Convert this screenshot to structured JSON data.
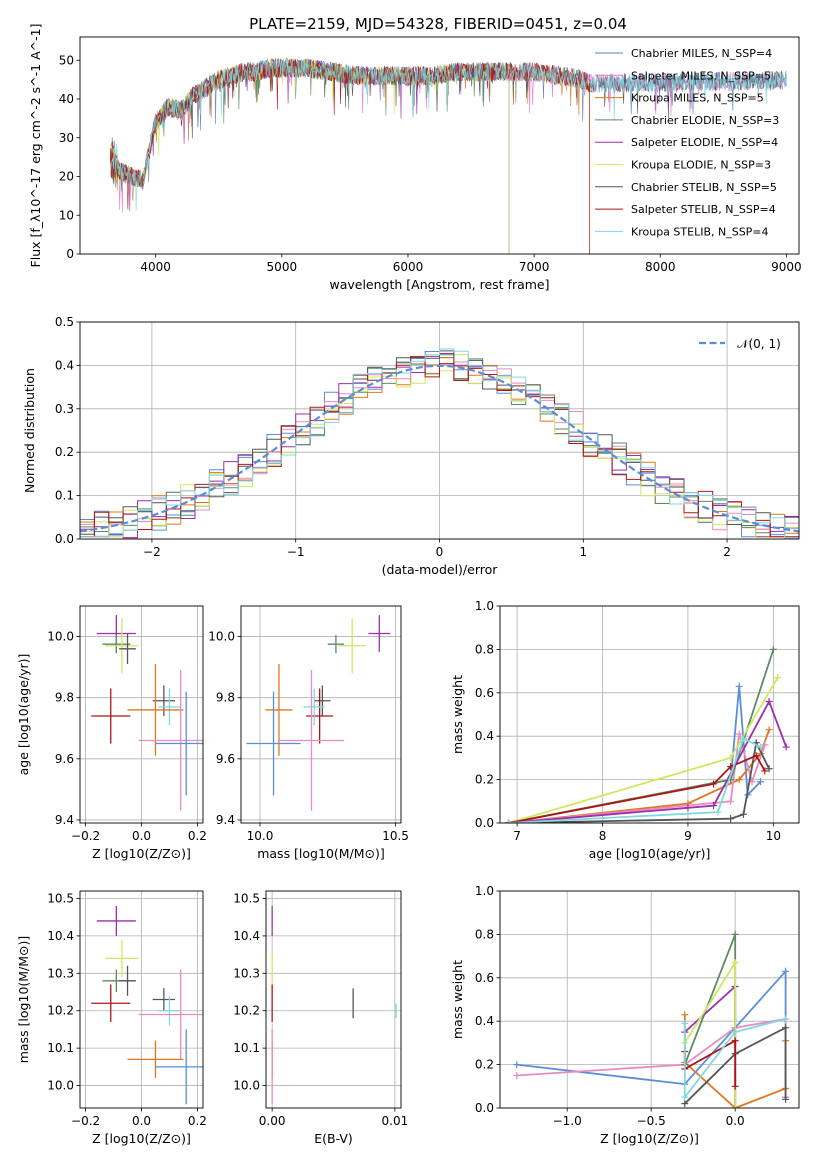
{
  "figure_title": "PLATE=2159, MJD=54328, FIBERID=0451, z=0.04",
  "colors": {
    "chabrier_miles": "#5b7fb8",
    "salpeter_miles": "#e377c2",
    "kroupa_miles": "#d97b1f",
    "chabrier_elodie": "#5a8a5a",
    "salpeter_elodie": "#9b2fae",
    "kroupa_elodie": "#d4e85a",
    "chabrier_stelib": "#555555",
    "salpeter_stelib": "#b01515",
    "kroupa_stelib": "#80d8e0",
    "plot_blue": "#5b8dd9",
    "plot_orange": "#e0781f",
    "plot_pink": "#e88bc0",
    "plot_green": "#5e8a62",
    "plot_purple": "#9b2fae",
    "plot_yellow": "#cfe860",
    "plot_grey": "#555555",
    "plot_red": "#b01515",
    "plot_cyan": "#80d8e0",
    "gauss": "#5b8dd9"
  },
  "chart_data": [
    {
      "id": "spectrum",
      "type": "line",
      "xlabel": "wavelength [Angstrom, rest frame]",
      "ylabel": "Flux [f_λ10^-17 erg cm^-2 s^-1 A^-1]",
      "xlim": [
        3400,
        9100
      ],
      "ylim": [
        0,
        56
      ],
      "xticks": [
        4000,
        5000,
        6000,
        7000,
        8000,
        9000
      ],
      "yticks": [
        0,
        10,
        20,
        30,
        40,
        50
      ],
      "grid": false,
      "legend_position": "upper-right",
      "continuum": {
        "x": [
          3640,
          3700,
          3800,
          3900,
          3950,
          4000,
          4100,
          4200,
          4300,
          4400,
          4500,
          4600,
          4700,
          4800,
          4900,
          5000,
          5200,
          5400,
          5600,
          5800,
          6000,
          6200,
          6400,
          6600,
          6800,
          7000,
          7200,
          7400,
          7440
        ],
        "y": [
          25,
          22,
          20,
          19,
          27,
          34,
          38,
          37,
          41,
          43,
          45,
          46,
          47,
          47,
          48,
          48,
          48,
          47,
          46,
          46,
          46,
          46,
          47,
          47,
          47,
          47,
          46,
          45,
          44
        ]
      },
      "series": [
        {
          "name": "Chabrier MILES, N_SSP=4",
          "color_key": "chabrier_miles",
          "x_end": 9000
        },
        {
          "name": "Salpeter MILES, N_SSP=5",
          "color_key": "salpeter_miles",
          "x_end": 9000
        },
        {
          "name": "Kroupa MILES, N_SSP=5",
          "color_key": "kroupa_miles",
          "x_end": 7440
        },
        {
          "name": "Chabrier ELODIE, N_SSP=3",
          "color_key": "chabrier_elodie",
          "x_end": 6800
        },
        {
          "name": "Salpeter ELODIE, N_SSP=4",
          "color_key": "salpeter_elodie",
          "x_end": 6800
        },
        {
          "name": "Kroupa ELODIE, N_SSP=3",
          "color_key": "kroupa_elodie",
          "x_end": 6800
        },
        {
          "name": "Chabrier STELIB, N_SSP=5",
          "color_key": "chabrier_stelib",
          "x_end": 9000
        },
        {
          "name": "Salpeter STELIB, N_SSP=4",
          "color_key": "salpeter_stelib",
          "x_end": 7440
        },
        {
          "name": "Kroupa STELIB, N_SSP=4",
          "color_key": "kroupa_stelib",
          "x_end": 9000
        }
      ]
    },
    {
      "id": "residuals",
      "type": "line",
      "xlabel": "(data-model)/error",
      "ylabel": "Normed distribution",
      "xlim": [
        -2.5,
        2.5
      ],
      "ylim": [
        0,
        0.5
      ],
      "xticks": [
        -2,
        -1,
        0,
        1,
        2
      ],
      "yticks": [
        0.0,
        0.1,
        0.2,
        0.3,
        0.4,
        0.5
      ],
      "grid": true,
      "legend_position": "upper-right",
      "legend": "𝒩(0, 1)",
      "bin_width": 0.1
    },
    {
      "id": "age_vs_z",
      "type": "scatter",
      "xlabel": "Z [log10(Z/Z⊙)]",
      "ylabel": "age [log10(age/yr)]",
      "xlim": [
        -0.22,
        0.22
      ],
      "ylim": [
        9.39,
        10.1
      ],
      "xticks": [
        -0.2,
        0.0,
        0.2
      ],
      "yticks": [
        9.4,
        9.6,
        9.8,
        10.0
      ],
      "grid": true,
      "points": [
        {
          "color_key": "plot_purple",
          "x": -0.09,
          "y": 10.01,
          "xerr": 0.07,
          "yerr": 0.06
        },
        {
          "color_key": "plot_green",
          "x": -0.09,
          "y": 9.975,
          "xerr": 0.05,
          "yerr": 0.03
        },
        {
          "color_key": "plot_yellow",
          "x": -0.07,
          "y": 9.97,
          "xerr": 0.06,
          "yerr": 0.09
        },
        {
          "color_key": "plot_grey",
          "x": -0.05,
          "y": 9.96,
          "xerr": 0.03,
          "yerr": 0.05
        },
        {
          "color_key": "plot_red",
          "x": -0.11,
          "y": 9.74,
          "xerr": 0.07,
          "yerr": 0.09
        },
        {
          "color_key": "plot_grey",
          "x": 0.08,
          "y": 9.79,
          "xerr": 0.04,
          "yerr": 0.05
        },
        {
          "color_key": "plot_cyan",
          "x": 0.1,
          "y": 9.77,
          "xerr": 0.04,
          "yerr": 0.06
        },
        {
          "color_key": "plot_orange",
          "x": 0.05,
          "y": 9.76,
          "xerr": 0.1,
          "yerr": 0.15
        },
        {
          "color_key": "plot_pink",
          "x": 0.14,
          "y": 9.66,
          "xerr": 0.15,
          "yerr": 0.23
        },
        {
          "color_key": "plot_blue",
          "x": 0.16,
          "y": 9.65,
          "xerr": 0.11,
          "yerr": 0.17
        }
      ]
    },
    {
      "id": "age_vs_mass",
      "type": "scatter",
      "xlabel": "mass [log10(M/M⊙)]",
      "ylabel": "",
      "xlim": [
        9.93,
        10.52
      ],
      "ylim": [
        9.39,
        10.1
      ],
      "xticks": [
        10.0,
        10.5
      ],
      "yticks": [
        9.4,
        9.6,
        9.8,
        10.0
      ],
      "grid": true,
      "points": [
        {
          "color_key": "plot_purple",
          "x": 10.44,
          "y": 10.01,
          "xerr": 0.04,
          "yerr": 0.06
        },
        {
          "color_key": "plot_green",
          "x": 10.28,
          "y": 9.975,
          "xerr": 0.03,
          "yerr": 0.03
        },
        {
          "color_key": "plot_yellow",
          "x": 10.34,
          "y": 9.97,
          "xerr": 0.05,
          "yerr": 0.09
        },
        {
          "color_key": "plot_grey",
          "x": 10.23,
          "y": 9.79,
          "xerr": 0.03,
          "yerr": 0.05
        },
        {
          "color_key": "plot_red",
          "x": 10.22,
          "y": 9.74,
          "xerr": 0.05,
          "yerr": 0.09
        },
        {
          "color_key": "plot_cyan",
          "x": 10.2,
          "y": 9.77,
          "xerr": 0.04,
          "yerr": 0.06
        },
        {
          "color_key": "plot_orange",
          "x": 10.07,
          "y": 9.76,
          "xerr": 0.05,
          "yerr": 0.15
        },
        {
          "color_key": "plot_pink",
          "x": 10.19,
          "y": 9.66,
          "xerr": 0.12,
          "yerr": 0.23
        },
        {
          "color_key": "plot_blue",
          "x": 10.05,
          "y": 9.65,
          "xerr": 0.1,
          "yerr": 0.17
        }
      ]
    },
    {
      "id": "weight_vs_age",
      "type": "line",
      "xlabel": "age [log10(age/yr)]",
      "ylabel": "mass weight",
      "xlim": [
        6.8,
        10.3
      ],
      "ylim": [
        0,
        1.0
      ],
      "xticks": [
        7,
        8,
        9,
        10
      ],
      "yticks": [
        0.0,
        0.2,
        0.4,
        0.6,
        0.8,
        1.0
      ],
      "grid": true,
      "series": [
        {
          "color_key": "plot_blue",
          "x": [
            6.9,
            9.5,
            9.6,
            9.7,
            9.85
          ],
          "y": [
            0.0,
            0.2,
            0.63,
            0.13,
            0.19
          ]
        },
        {
          "color_key": "plot_orange",
          "x": [
            6.9,
            9.0,
            9.6,
            9.85,
            9.95
          ],
          "y": [
            0.0,
            0.09,
            0.2,
            0.32,
            0.43
          ]
        },
        {
          "color_key": "plot_pink",
          "x": [
            6.9,
            9.5,
            9.6,
            9.75,
            9.9
          ],
          "y": [
            0.0,
            0.1,
            0.41,
            0.19,
            0.36
          ]
        },
        {
          "color_key": "plot_green",
          "x": [
            6.9,
            9.5,
            10.0
          ],
          "y": [
            0.0,
            0.2,
            0.8
          ]
        },
        {
          "color_key": "plot_purple",
          "x": [
            6.9,
            9.0,
            9.3,
            9.95,
            10.15
          ],
          "y": [
            0.0,
            0.07,
            0.08,
            0.56,
            0.35
          ]
        },
        {
          "color_key": "plot_yellow",
          "x": [
            6.9,
            9.5,
            10.05
          ],
          "y": [
            0.0,
            0.3,
            0.67
          ]
        },
        {
          "color_key": "plot_grey",
          "x": [
            6.9,
            9.5,
            9.65,
            9.8,
            9.95
          ],
          "y": [
            0.0,
            0.02,
            0.04,
            0.37,
            0.25
          ]
        },
        {
          "color_key": "plot_red",
          "x": [
            6.9,
            9.3,
            9.5,
            9.8,
            9.9
          ],
          "y": [
            0.0,
            0.18,
            0.26,
            0.31,
            0.24
          ]
        },
        {
          "color_key": "plot_cyan",
          "x": [
            6.9,
            9.35,
            9.65,
            9.85
          ],
          "y": [
            0.0,
            0.05,
            0.39,
            0.35
          ]
        }
      ]
    },
    {
      "id": "mass_vs_z",
      "type": "scatter",
      "xlabel": "Z [log10(Z/Z⊙)]",
      "ylabel": "mass [log10(M/M⊙)]",
      "xlim": [
        -0.22,
        0.22
      ],
      "ylim": [
        9.94,
        10.52
      ],
      "xticks": [
        -0.2,
        0.0,
        0.2
      ],
      "yticks": [
        10.0,
        10.1,
        10.2,
        10.3,
        10.4,
        10.5
      ],
      "grid": true,
      "points": [
        {
          "color_key": "plot_purple",
          "x": -0.09,
          "y": 10.44,
          "xerr": 0.07,
          "yerr": 0.04
        },
        {
          "color_key": "plot_yellow",
          "x": -0.07,
          "y": 10.34,
          "xerr": 0.06,
          "yerr": 0.05
        },
        {
          "color_key": "plot_green",
          "x": -0.09,
          "y": 10.28,
          "xerr": 0.05,
          "yerr": 0.03
        },
        {
          "color_key": "plot_grey",
          "x": -0.05,
          "y": 10.28,
          "xerr": 0.03,
          "yerr": 0.04
        },
        {
          "color_key": "plot_red",
          "x": -0.11,
          "y": 10.22,
          "xerr": 0.07,
          "yerr": 0.05
        },
        {
          "color_key": "plot_grey",
          "x": 0.08,
          "y": 10.23,
          "xerr": 0.04,
          "yerr": 0.03
        },
        {
          "color_key": "plot_cyan",
          "x": 0.1,
          "y": 10.2,
          "xerr": 0.04,
          "yerr": 0.04
        },
        {
          "color_key": "plot_pink",
          "x": 0.14,
          "y": 10.19,
          "xerr": 0.15,
          "yerr": 0.12
        },
        {
          "color_key": "plot_orange",
          "x": 0.05,
          "y": 10.07,
          "xerr": 0.1,
          "yerr": 0.05
        },
        {
          "color_key": "plot_blue",
          "x": 0.16,
          "y": 10.05,
          "xerr": 0.11,
          "yerr": 0.1
        }
      ]
    },
    {
      "id": "mass_vs_ebv",
      "type": "scatter",
      "xlabel": "E(B-V)",
      "ylabel": "",
      "xlim": [
        -0.0005,
        0.0105
      ],
      "ylim": [
        9.94,
        10.52
      ],
      "xticks": [
        0.0,
        0.01
      ],
      "xtick_labels": [
        "0.00",
        "0.01"
      ],
      "yticks": [
        10.0,
        10.1,
        10.2,
        10.3,
        10.4,
        10.5
      ],
      "grid": true,
      "points": [
        {
          "color_key": "plot_purple",
          "x": 0.0,
          "y": 10.44,
          "xerr": 0,
          "yerr": 0.04
        },
        {
          "color_key": "plot_yellow",
          "x": 0.0,
          "y": 10.3,
          "xerr": 0,
          "yerr": 0.05
        },
        {
          "color_key": "plot_red",
          "x": 0.0,
          "y": 10.22,
          "xerr": 0,
          "yerr": 0.05
        },
        {
          "color_key": "plot_orange",
          "x": 0.0,
          "y": 10.07,
          "xerr": 0,
          "yerr": 0.05
        },
        {
          "color_key": "plot_pink",
          "x": 0.0,
          "y": 10.05,
          "xerr": 0,
          "yerr": 0.1
        },
        {
          "color_key": "plot_grey",
          "x": 0.0066,
          "y": 10.22,
          "xerr": 0,
          "yerr": 0.04
        },
        {
          "color_key": "plot_cyan",
          "x": 0.0101,
          "y": 10.2,
          "xerr": 0,
          "yerr": 0.02
        }
      ]
    },
    {
      "id": "weight_vs_z",
      "type": "line",
      "xlabel": "Z [log10(Z/Z⊙)]",
      "ylabel": "mass weight",
      "xlim": [
        -1.4,
        0.38
      ],
      "ylim": [
        0,
        1.0
      ],
      "xticks": [
        -1.0,
        -0.5,
        0.0
      ],
      "yticks": [
        0.0,
        0.2,
        0.4,
        0.6,
        0.8,
        1.0
      ],
      "grid": true,
      "series": [
        {
          "color_key": "plot_blue",
          "x": [
            -1.3,
            -0.3,
            0.0,
            0.3,
            0.3
          ],
          "y": [
            0.2,
            0.11,
            0.37,
            0.63,
            0.05
          ]
        },
        {
          "color_key": "plot_orange",
          "x": [
            -0.3,
            -0.3,
            0.0,
            0.3,
            0.3
          ],
          "y": [
            0.43,
            0.21,
            0.0,
            0.09,
            0.31
          ]
        },
        {
          "color_key": "plot_pink",
          "x": [
            -1.3,
            -0.3,
            0.0,
            0.3,
            0.3
          ],
          "y": [
            0.15,
            0.2,
            0.37,
            0.41,
            0.05
          ]
        },
        {
          "color_key": "plot_green",
          "x": [
            -0.3,
            0.0,
            0.0
          ],
          "y": [
            0.2,
            0.8,
            0.0
          ]
        },
        {
          "color_key": "plot_purple",
          "x": [
            -0.3,
            -0.3,
            0.0,
            0.0
          ],
          "y": [
            0.35,
            0.35,
            0.56,
            0.0
          ]
        },
        {
          "color_key": "plot_yellow",
          "x": [
            -0.3,
            0.0,
            0.0
          ],
          "y": [
            0.3,
            0.67,
            0.0
          ]
        },
        {
          "color_key": "plot_grey",
          "x": [
            -0.3,
            0.0,
            0.3,
            0.3
          ],
          "y": [
            0.02,
            0.25,
            0.37,
            0.04
          ]
        },
        {
          "color_key": "plot_red",
          "x": [
            -0.3,
            -0.3,
            0.0,
            0.0
          ],
          "y": [
            0.26,
            0.18,
            0.31,
            0.1
          ]
        },
        {
          "color_key": "plot_cyan",
          "x": [
            -0.3,
            -0.3,
            0.0,
            0.3
          ],
          "y": [
            0.39,
            0.05,
            0.35,
            0.41
          ]
        }
      ]
    }
  ]
}
